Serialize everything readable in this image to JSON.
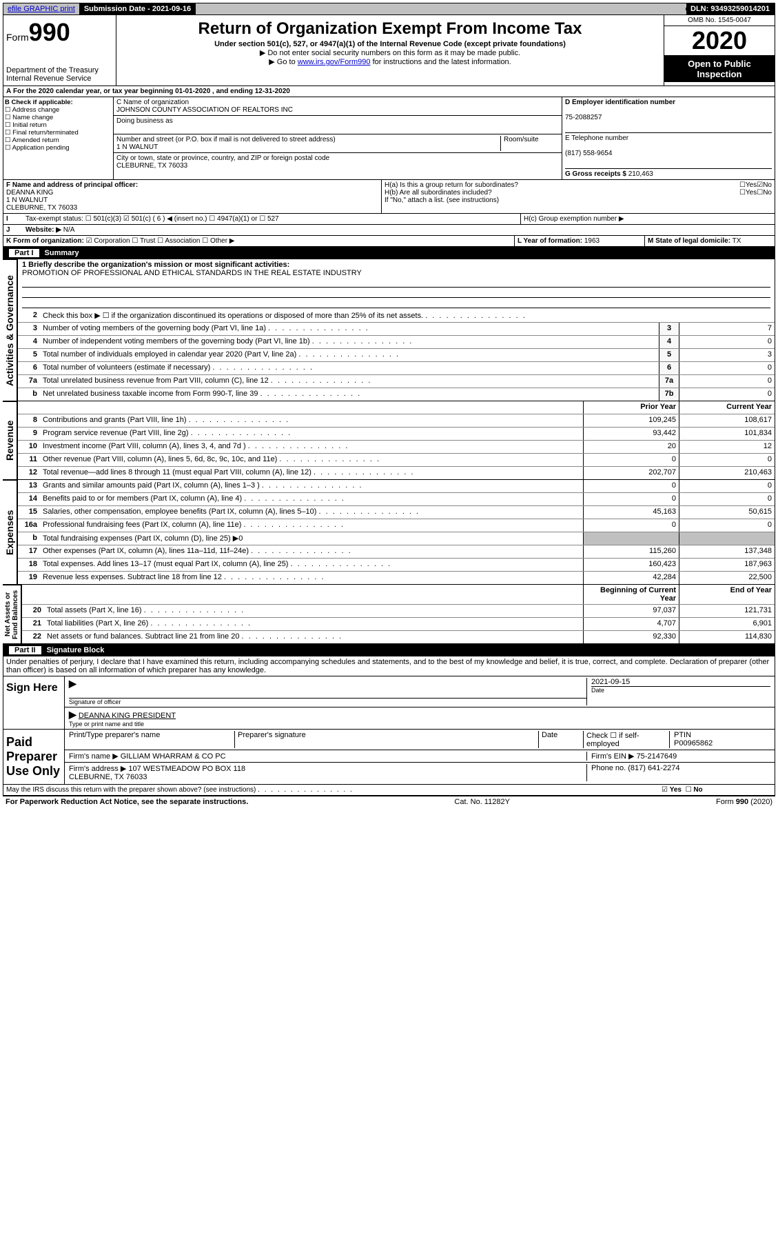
{
  "top": {
    "efile": "efile GRAPHIC print",
    "subdate_lbl": "Submission Date - 2021-09-16",
    "dln": "DLN: 93493259014201"
  },
  "header": {
    "form_prefix": "Form",
    "form_num": "990",
    "title": "Return of Organization Exempt From Income Tax",
    "sub1": "Under section 501(c), 527, or 4947(a)(1) of the Internal Revenue Code (except private foundations)",
    "sub2": "▶ Do not enter social security numbers on this form as it may be made public.",
    "sub3a": "▶ Go to ",
    "sub3link": "www.irs.gov/Form990",
    "sub3b": " for instructions and the latest information.",
    "dept": "Department of the Treasury\nInternal Revenue Service",
    "omb": "OMB No. 1545-0047",
    "year": "2020",
    "open": "Open to Public\nInspection"
  },
  "A": {
    "text": "For the 2020 calendar year, or tax year beginning 01-01-2020    , and ending 12-31-2020"
  },
  "B": {
    "lbl": "B Check if applicable:",
    "opts": [
      "Address change",
      "Name change",
      "Initial return",
      "Final return/terminated",
      "Amended return",
      "Application pending"
    ]
  },
  "C": {
    "name_lbl": "C Name of organization",
    "name": "JOHNSON COUNTY ASSOCIATION OF REALTORS INC",
    "dba_lbl": "Doing business as",
    "addr_lbl": "Number and street (or P.O. box if mail is not delivered to street address)",
    "room_lbl": "Room/suite",
    "addr": "1 N WALNUT",
    "city_lbl": "City or town, state or province, country, and ZIP or foreign postal code",
    "city": "CLEBURNE, TX 76033"
  },
  "D": {
    "lbl": "D Employer identification number",
    "val": "75-2088257"
  },
  "E": {
    "lbl": "E Telephone number",
    "val": "(817) 558-9654"
  },
  "G": {
    "lbl": "G Gross receipts $",
    "val": "210,463"
  },
  "F": {
    "lbl": "F  Name and address of principal officer:",
    "val": "DEANNA KING\n1 N WALNUT\nCLEBURNE, TX  76033"
  },
  "H": {
    "a": "H(a)  Is this a group return for subordinates?",
    "b": "H(b)  Are all subordinates included?",
    "b2": "If \"No,\" attach a list. (see instructions)",
    "c": "H(c)  Group exemption number ▶",
    "yes": "Yes",
    "no": "No"
  },
  "I": {
    "lbl": "Tax-exempt status:",
    "opts": [
      "501(c)(3)",
      "501(c) ( 6 ) ◀ (insert no.)",
      "4947(a)(1) or",
      "527"
    ]
  },
  "J": {
    "lbl": "Website: ▶",
    "val": "N/A"
  },
  "K": {
    "lbl": "K Form of organization:",
    "opts": [
      "Corporation",
      "Trust",
      "Association",
      "Other ▶"
    ]
  },
  "L": {
    "lbl": "L Year of formation:",
    "val": "1963"
  },
  "M": {
    "lbl": "M State of legal domicile:",
    "val": "TX"
  },
  "part1": {
    "lbl": "Part I",
    "title": "Summary"
  },
  "mission_lbl": "1  Briefly describe the organization's mission or most significant activities:",
  "mission": "PROMOTION OF PROFESSIONAL AND ETHICAL STANDARDS IN THE REAL ESTATE INDUSTRY",
  "gov_lines": [
    {
      "n": "2",
      "d": "Check this box ▶ ☐  if the organization discontinued its operations or disposed of more than 25% of its net assets."
    },
    {
      "n": "3",
      "d": "Number of voting members of the governing body (Part VI, line 1a)",
      "box": "3",
      "v": "7"
    },
    {
      "n": "4",
      "d": "Number of independent voting members of the governing body (Part VI, line 1b)",
      "box": "4",
      "v": "0"
    },
    {
      "n": "5",
      "d": "Total number of individuals employed in calendar year 2020 (Part V, line 2a)",
      "box": "5",
      "v": "3"
    },
    {
      "n": "6",
      "d": "Total number of volunteers (estimate if necessary)",
      "box": "6",
      "v": "0"
    },
    {
      "n": "7a",
      "d": "Total unrelated business revenue from Part VIII, column (C), line 12",
      "box": "7a",
      "v": "0"
    },
    {
      "n": "b",
      "d": "Net unrelated business taxable income from Form 990-T, line 39",
      "box": "7b",
      "v": "0"
    }
  ],
  "col_prior": "Prior Year",
  "col_curr": "Current Year",
  "rev_lines": [
    {
      "n": "8",
      "d": "Contributions and grants (Part VIII, line 1h)",
      "p": "109,245",
      "c": "108,617"
    },
    {
      "n": "9",
      "d": "Program service revenue (Part VIII, line 2g)",
      "p": "93,442",
      "c": "101,834"
    },
    {
      "n": "10",
      "d": "Investment income (Part VIII, column (A), lines 3, 4, and 7d )",
      "p": "20",
      "c": "12"
    },
    {
      "n": "11",
      "d": "Other revenue (Part VIII, column (A), lines 5, 6d, 8c, 9c, 10c, and 11e)",
      "p": "0",
      "c": "0"
    },
    {
      "n": "12",
      "d": "Total revenue—add lines 8 through 11 (must equal Part VIII, column (A), line 12)",
      "p": "202,707",
      "c": "210,463"
    }
  ],
  "exp_lines": [
    {
      "n": "13",
      "d": "Grants and similar amounts paid (Part IX, column (A), lines 1–3 )",
      "p": "0",
      "c": "0"
    },
    {
      "n": "14",
      "d": "Benefits paid to or for members (Part IX, column (A), line 4)",
      "p": "0",
      "c": "0"
    },
    {
      "n": "15",
      "d": "Salaries, other compensation, employee benefits (Part IX, column (A), lines 5–10)",
      "p": "45,163",
      "c": "50,615"
    },
    {
      "n": "16a",
      "d": "Professional fundraising fees (Part IX, column (A), line 11e)",
      "p": "0",
      "c": "0"
    },
    {
      "n": "b",
      "d": "Total fundraising expenses (Part IX, column (D), line 25) ▶0",
      "p": "",
      "c": "",
      "shade": true
    },
    {
      "n": "17",
      "d": "Other expenses (Part IX, column (A), lines 11a–11d, 11f–24e)",
      "p": "115,260",
      "c": "137,348"
    },
    {
      "n": "18",
      "d": "Total expenses. Add lines 13–17 (must equal Part IX, column (A), line 25)",
      "p": "160,423",
      "c": "187,963"
    },
    {
      "n": "19",
      "d": "Revenue less expenses. Subtract line 18 from line 12",
      "p": "42,284",
      "c": "22,500"
    }
  ],
  "col_begin": "Beginning of Current Year",
  "col_end": "End of Year",
  "na_lines": [
    {
      "n": "20",
      "d": "Total assets (Part X, line 16)",
      "p": "97,037",
      "c": "121,731"
    },
    {
      "n": "21",
      "d": "Total liabilities (Part X, line 26)",
      "p": "4,707",
      "c": "6,901"
    },
    {
      "n": "22",
      "d": "Net assets or fund balances. Subtract line 21 from line 20",
      "p": "92,330",
      "c": "114,830"
    }
  ],
  "part2": {
    "lbl": "Part II",
    "title": "Signature Block"
  },
  "penalty": "Under penalties of perjury, I declare that I have examined this return, including accompanying schedules and statements, and to the best of my knowledge and belief, it is true, correct, and complete. Declaration of preparer (other than officer) is based on all information of which preparer has any knowledge.",
  "sign": {
    "here": "Sign Here",
    "sig_lbl": "Signature of officer",
    "date_lbl": "Date",
    "date": "2021-09-15",
    "name": "DEANNA KING PRESIDENT",
    "name_lbl": "Type or print name and title"
  },
  "paid": {
    "title": "Paid Preparer Use Only",
    "prep_lbl": "Print/Type preparer's name",
    "sig_lbl": "Preparer's signature",
    "date_lbl": "Date",
    "self_lbl": "Check ☐ if self-employed",
    "ptin_lbl": "PTIN",
    "ptin": "P00965862",
    "firm_name_lbl": "Firm's name    ▶",
    "firm_name": "GILLIAM WHARRAM & CO PC",
    "firm_ein_lbl": "Firm's EIN ▶",
    "firm_ein": "75-2147649",
    "firm_addr_lbl": "Firm's address ▶",
    "firm_addr": "107 WESTMEADOW PO BOX 118\nCLEBURNE, TX  76033",
    "phone_lbl": "Phone no.",
    "phone": "(817) 641-2274"
  },
  "discuss": "May the IRS discuss this return with the preparer shown above? (see instructions)",
  "foot": {
    "pra": "For Paperwork Reduction Act Notice, see the separate instructions.",
    "cat": "Cat. No. 11282Y",
    "form": "Form 990 (2020)"
  }
}
